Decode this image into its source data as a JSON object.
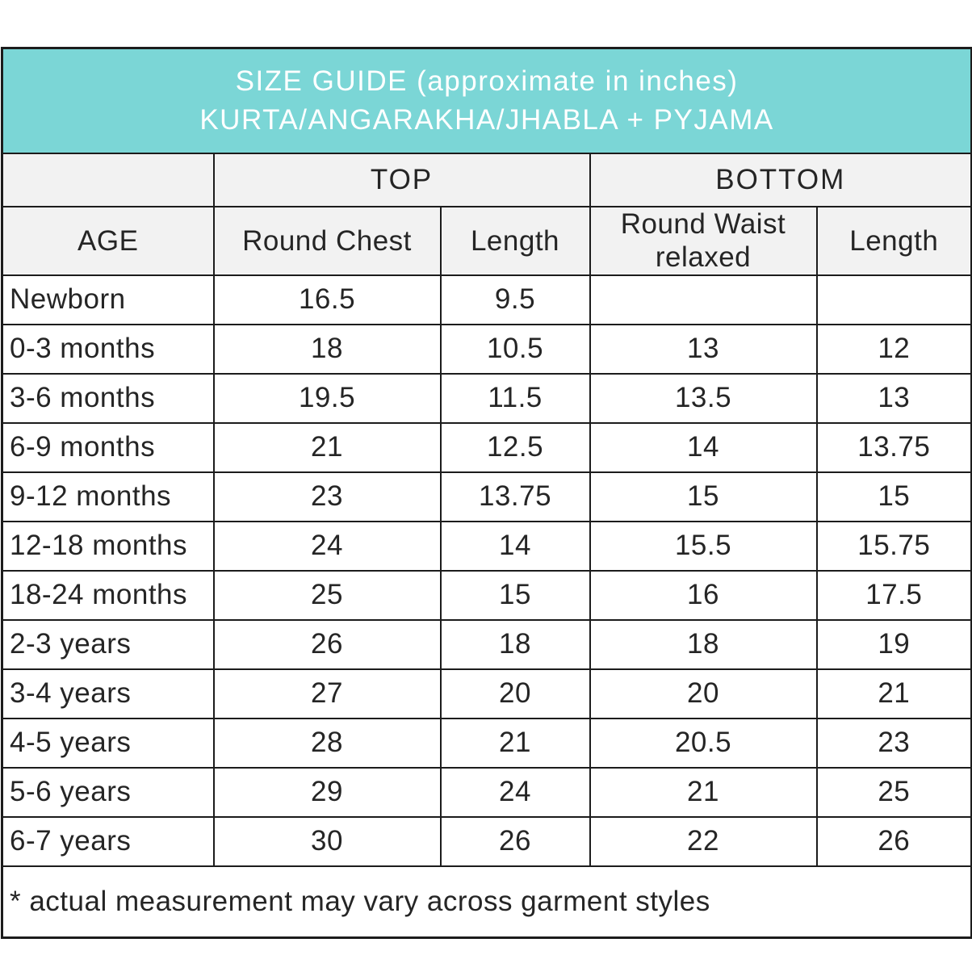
{
  "header": {
    "line1": "SIZE GUIDE (approximate in inches)",
    "line2": "KURTA/ANGARAKHA/JHABLA + PYJAMA"
  },
  "table": {
    "groups": {
      "age_spacer": "",
      "top": "TOP",
      "bottom": "BOTTOM"
    },
    "columns": [
      "AGE",
      "Round Chest",
      "Length",
      "Round Waist relaxed",
      "Length"
    ],
    "rows": [
      {
        "age": "Newborn",
        "chest": "16.5",
        "top_length": "9.5",
        "waist": "",
        "bottom_length": ""
      },
      {
        "age": "0-3 months",
        "chest": "18",
        "top_length": "10.5",
        "waist": "13",
        "bottom_length": "12"
      },
      {
        "age": "3-6 months",
        "chest": "19.5",
        "top_length": "11.5",
        "waist": "13.5",
        "bottom_length": "13"
      },
      {
        "age": "6-9 months",
        "chest": "21",
        "top_length": "12.5",
        "waist": "14",
        "bottom_length": "13.75"
      },
      {
        "age": "9-12 months",
        "chest": "23",
        "top_length": "13.75",
        "waist": "15",
        "bottom_length": "15"
      },
      {
        "age": "12-18 months",
        "chest": "24",
        "top_length": "14",
        "waist": "15.5",
        "bottom_length": "15.75"
      },
      {
        "age": "18-24 months",
        "chest": "25",
        "top_length": "15",
        "waist": "16",
        "bottom_length": "17.5"
      },
      {
        "age": "2-3 years",
        "chest": "26",
        "top_length": "18",
        "waist": "18",
        "bottom_length": "19"
      },
      {
        "age": "3-4 years",
        "chest": "27",
        "top_length": "20",
        "waist": "20",
        "bottom_length": "21"
      },
      {
        "age": "4-5 years",
        "chest": "28",
        "top_length": "21",
        "waist": "20.5",
        "bottom_length": "23"
      },
      {
        "age": "5-6 years",
        "chest": "29",
        "top_length": "24",
        "waist": "21",
        "bottom_length": "25"
      },
      {
        "age": "6-7 years",
        "chest": "30",
        "top_length": "26",
        "waist": "22",
        "bottom_length": "26"
      }
    ],
    "footnote": "* actual measurement may vary across garment styles"
  },
  "colors": {
    "title_bg": "#7bd6d6",
    "title_text": "#ffffff",
    "header_bg": "#f2f2f2",
    "border": "#1c1c1c",
    "text": "#252525"
  },
  "chart_data": {
    "type": "table",
    "title": "SIZE GUIDE (approximate in inches) KURTA/ANGARAKHA/JHABLA + PYJAMA",
    "column_groups": [
      {
        "label": "",
        "span": 1
      },
      {
        "label": "TOP",
        "span": 2
      },
      {
        "label": "BOTTOM",
        "span": 2
      }
    ],
    "columns": [
      "AGE",
      "Round Chest",
      "Length",
      "Round Waist relaxed",
      "Length"
    ],
    "rows": [
      [
        "Newborn",
        16.5,
        9.5,
        null,
        null
      ],
      [
        "0-3 months",
        18,
        10.5,
        13,
        12
      ],
      [
        "3-6 months",
        19.5,
        11.5,
        13.5,
        13
      ],
      [
        "6-9 months",
        21,
        12.5,
        14,
        13.75
      ],
      [
        "9-12 months",
        23,
        13.75,
        15,
        15
      ],
      [
        "12-18 months",
        24,
        14,
        15.5,
        15.75
      ],
      [
        "18-24 months",
        25,
        15,
        16,
        17.5
      ],
      [
        "2-3 years",
        26,
        18,
        18,
        19
      ],
      [
        "3-4 years",
        27,
        20,
        20,
        21
      ],
      [
        "4-5 years",
        28,
        21,
        20.5,
        23
      ],
      [
        "5-6 years",
        29,
        24,
        21,
        25
      ],
      [
        "6-7 years",
        30,
        26,
        22,
        26
      ]
    ],
    "footnote": "* actual measurement may vary across garment styles"
  }
}
